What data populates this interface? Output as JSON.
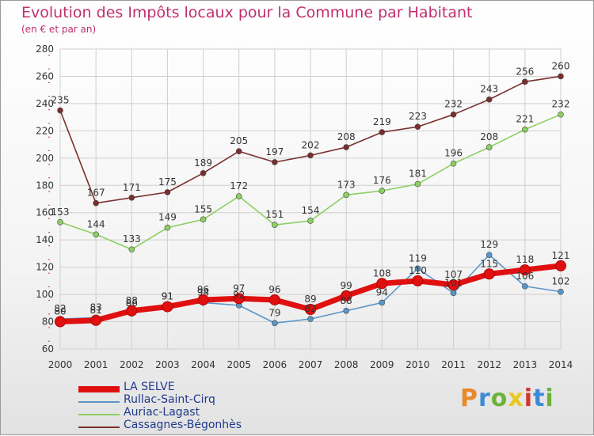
{
  "header": {
    "title": "Evolution des Impôts locaux pour la Commune par Habitant",
    "subtitle": "(en € et par an)"
  },
  "logo": {
    "text": "Proxiti",
    "colors": [
      "#e8892b",
      "#3a8ad6",
      "#6bb33a",
      "#e8c81f",
      "#d2342f",
      "#3a8ad6",
      "#6bb33a"
    ]
  },
  "colors": {
    "title": "#c0306f",
    "axis_text": "#333333",
    "grid": "#cfcfcf",
    "legend_text": "#1f3b8a"
  },
  "chart_data": {
    "type": "line",
    "x": [
      2000,
      2001,
      2002,
      2003,
      2004,
      2005,
      2006,
      2007,
      2008,
      2009,
      2010,
      2011,
      2012,
      2013,
      2014
    ],
    "ylim": [
      60,
      280
    ],
    "yticks": [
      60,
      80,
      100,
      120,
      140,
      160,
      180,
      200,
      220,
      240,
      260,
      280
    ],
    "grid": true,
    "legend_position": "bottom-left",
    "series": [
      {
        "name": "LA SELVE",
        "color": "#e01010",
        "values": [
          80,
          81,
          88,
          91,
          96,
          97,
          96,
          89,
          99,
          108,
          110,
          107,
          115,
          118,
          121
        ],
        "label_values": [
          80,
          81,
          88,
          91,
          96,
          97,
          96,
          89,
          99,
          108,
          110,
          107,
          115,
          118,
          121
        ]
      },
      {
        "name": "Rullac-Saint-Cirq",
        "color": "#5a96c8",
        "values": [
          82,
          83,
          86,
          91,
          94,
          92,
          79,
          82,
          88,
          94,
          119,
          101,
          129,
          106,
          102
        ],
        "label_values": [
          82,
          83,
          86,
          91,
          94,
          92,
          79,
          82,
          88,
          94,
          119,
          101,
          129,
          106,
          102
        ]
      },
      {
        "name": "Auriac-Lagast",
        "color": "#8cd064",
        "values": [
          153,
          144,
          133,
          149,
          155,
          172,
          151,
          154,
          173,
          176,
          181,
          196,
          208,
          221,
          232
        ],
        "label_values": [
          153,
          144,
          133,
          149,
          155,
          172,
          151,
          154,
          173,
          176,
          181,
          196,
          208,
          221,
          232
        ]
      },
      {
        "name": "Cassagnes-Bégonhès",
        "color": "#7a2f2f",
        "values": [
          235,
          167,
          171,
          175,
          189,
          205,
          197,
          202,
          208,
          219,
          223,
          232,
          243,
          256,
          260
        ],
        "label_values": [
          235,
          167,
          171,
          175,
          189,
          205,
          197,
          202,
          208,
          219,
          223,
          232,
          243,
          256,
          260
        ]
      }
    ]
  }
}
